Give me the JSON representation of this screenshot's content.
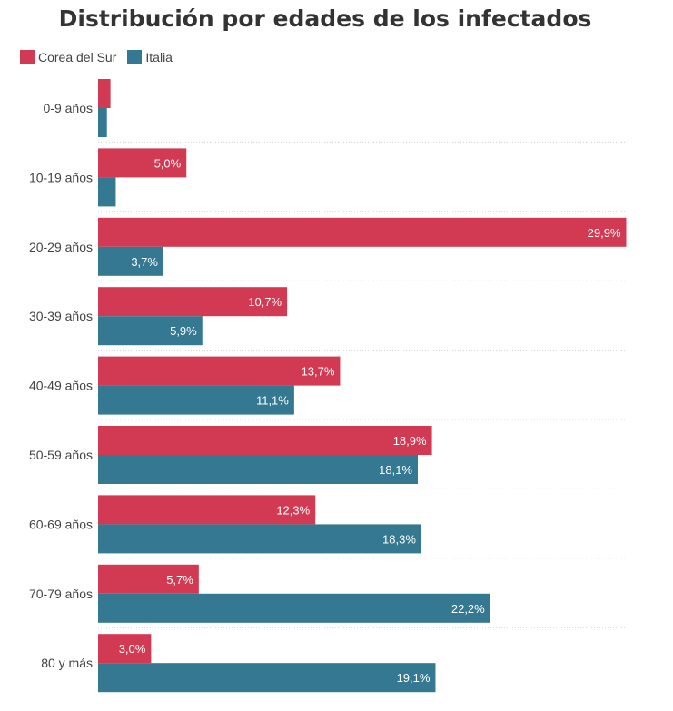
{
  "chart_data": {
    "type": "bar",
    "orientation": "horizontal",
    "title": "Distribución por edades de los infectados",
    "xlabel": "",
    "ylabel": "",
    "xlim": [
      0,
      29.9
    ],
    "legend_position": "top-left",
    "grid": false,
    "categories": [
      "0-9 años",
      "10-19 años",
      "20-29 años",
      "30-39 años",
      "40-49 años",
      "50-59 años",
      "60-69 años",
      "70-79 años",
      "80 y más"
    ],
    "series": [
      {
        "name": "Corea del Sur",
        "color": "#d13a52",
        "values": [
          0.7,
          5.0,
          29.9,
          10.7,
          13.7,
          18.9,
          12.3,
          5.7,
          3.0
        ],
        "labels": [
          "",
          "5,0%",
          "29,9%",
          "10,7%",
          "13,7%",
          "18,9%",
          "12,3%",
          "5,7%",
          "3,0%"
        ]
      },
      {
        "name": "Italia",
        "color": "#357891",
        "values": [
          0.5,
          1.0,
          3.7,
          5.9,
          11.1,
          18.1,
          18.3,
          22.2,
          19.1
        ],
        "labels": [
          "",
          "",
          "3,7%",
          "5,9%",
          "11,1%",
          "18,1%",
          "18,3%",
          "22,2%",
          "19,1%"
        ]
      }
    ]
  }
}
